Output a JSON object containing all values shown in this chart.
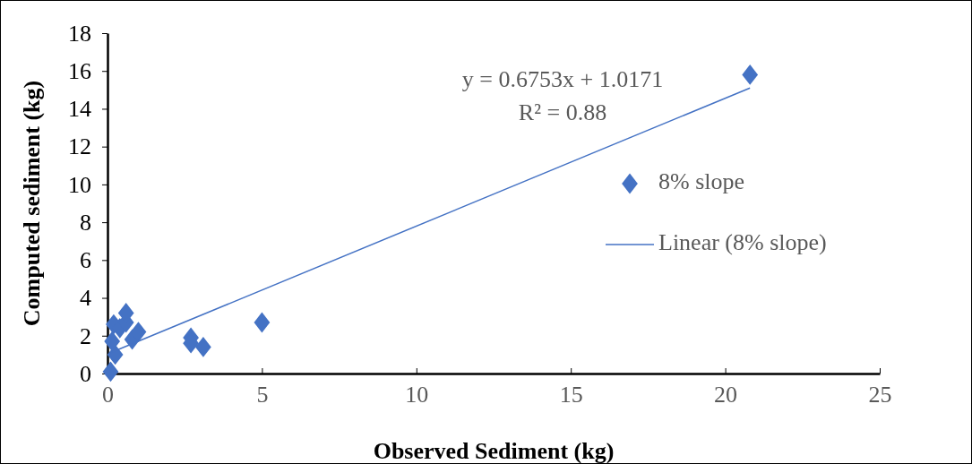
{
  "chart_data": {
    "type": "scatter",
    "xlabel": "Observed Sediment (kg)",
    "ylabel": "Computed sediment (kg)",
    "xlim": [
      0,
      25
    ],
    "xticks": [
      0,
      5,
      10,
      15,
      20,
      25
    ],
    "ylim": [
      0,
      18
    ],
    "yticks": [
      0,
      2,
      4,
      6,
      8,
      10,
      12,
      14,
      16,
      18
    ],
    "grid": false,
    "legend": "right",
    "marker": "diamond",
    "annotations": [
      "y = 0.6753x + 1.0171",
      "R² = 0.88"
    ],
    "series": [
      {
        "name": "8% slope",
        "type": "scatter",
        "color": "#4472c4",
        "x": [
          0.1,
          0.25,
          0.15,
          0.2,
          0.4,
          0.6,
          0.6,
          0.8,
          1.0,
          2.7,
          2.7,
          3.1,
          5.0,
          20.8
        ],
        "values": [
          0.1,
          1.0,
          1.7,
          2.6,
          2.4,
          2.7,
          3.2,
          1.8,
          2.2,
          1.9,
          1.6,
          1.4,
          2.7,
          15.8
        ]
      },
      {
        "name": "Linear (8% slope)",
        "type": "line",
        "color": "#4472c4",
        "line_style": "solid",
        "marker": "none",
        "x": [
          0.1,
          20.8
        ],
        "values": [
          1.1,
          15.1
        ]
      }
    ]
  }
}
